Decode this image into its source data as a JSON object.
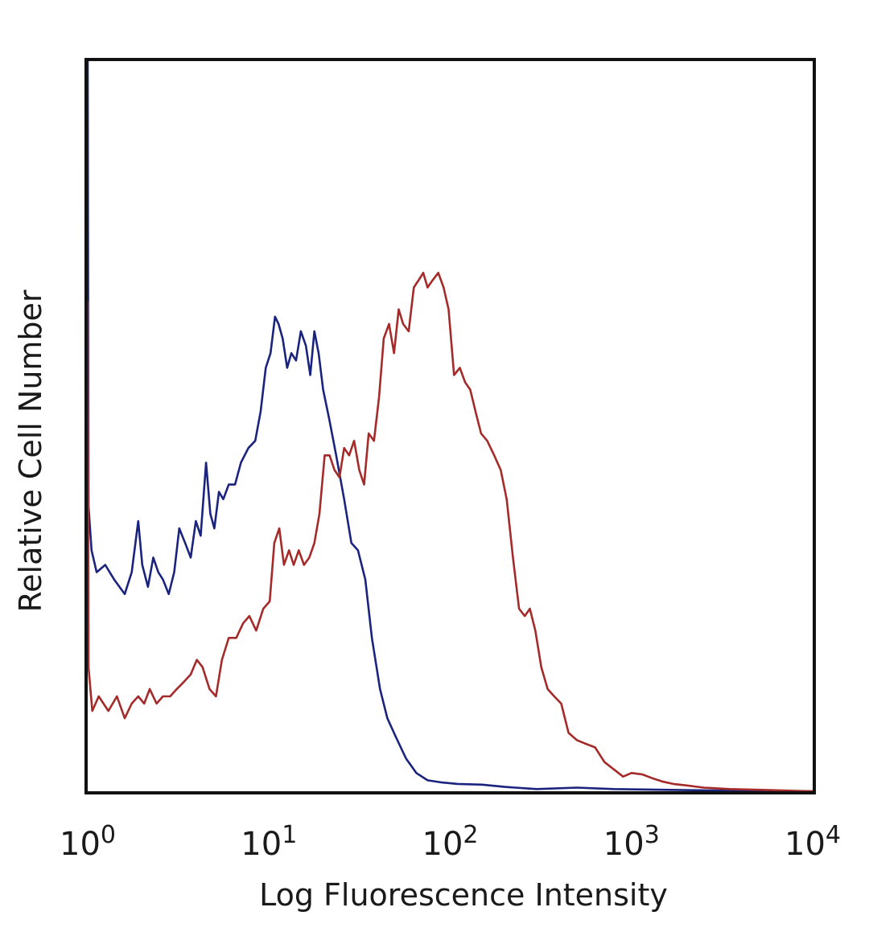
{
  "chart_data": {
    "type": "line",
    "title": "",
    "xlabel": "Log Fluorescence Intensity",
    "ylabel": "Relative Cell Number",
    "x_scale": "log",
    "xlim": [
      1,
      10000
    ],
    "ylim": [
      0,
      100
    ],
    "y_ticks_shown": false,
    "grid": false,
    "legend": "none",
    "x_ticks": [
      {
        "value": 1,
        "base": "10",
        "exp": "0"
      },
      {
        "value": 10,
        "base": "10",
        "exp": "1"
      },
      {
        "value": 100,
        "base": "10",
        "exp": "2"
      },
      {
        "value": 1000,
        "base": "10",
        "exp": "3"
      },
      {
        "value": 10000,
        "base": "10",
        "exp": "4"
      }
    ],
    "series": [
      {
        "color": "#1a237e",
        "points": [
          [
            1.0,
            100
          ],
          [
            1.01,
            39
          ],
          [
            1.05,
            33
          ],
          [
            1.12,
            30
          ],
          [
            1.25,
            31
          ],
          [
            1.4,
            29
          ],
          [
            1.6,
            27
          ],
          [
            1.75,
            30
          ],
          [
            1.9,
            37
          ],
          [
            2.0,
            31
          ],
          [
            2.15,
            28
          ],
          [
            2.3,
            32
          ],
          [
            2.45,
            30
          ],
          [
            2.6,
            29
          ],
          [
            2.8,
            27
          ],
          [
            3.0,
            30
          ],
          [
            3.2,
            36
          ],
          [
            3.45,
            34
          ],
          [
            3.7,
            32
          ],
          [
            3.95,
            37
          ],
          [
            4.2,
            35
          ],
          [
            4.5,
            45
          ],
          [
            4.75,
            38
          ],
          [
            5.0,
            36
          ],
          [
            5.3,
            41
          ],
          [
            5.6,
            40
          ],
          [
            6.0,
            42
          ],
          [
            6.5,
            42
          ],
          [
            7.0,
            45
          ],
          [
            7.7,
            47
          ],
          [
            8.4,
            48
          ],
          [
            9.0,
            52
          ],
          [
            9.6,
            58
          ],
          [
            10.2,
            60
          ],
          [
            10.8,
            65
          ],
          [
            11.3,
            64
          ],
          [
            11.9,
            62
          ],
          [
            12.6,
            58
          ],
          [
            13.3,
            60
          ],
          [
            14.1,
            59
          ],
          [
            15.0,
            63
          ],
          [
            16.0,
            61
          ],
          [
            16.9,
            57
          ],
          [
            17.8,
            63
          ],
          [
            18.8,
            60
          ],
          [
            19.9,
            55
          ],
          [
            21.5,
            51
          ],
          [
            23.5,
            46
          ],
          [
            26.0,
            40
          ],
          [
            28.5,
            34
          ],
          [
            31.0,
            33
          ],
          [
            34.0,
            29
          ],
          [
            37.0,
            21
          ],
          [
            41.0,
            14
          ],
          [
            45.0,
            10
          ],
          [
            50.0,
            7.5
          ],
          [
            57.0,
            4.5
          ],
          [
            65.0,
            2.5
          ],
          [
            75.0,
            1.5
          ],
          [
            90.0,
            1.2
          ],
          [
            110.0,
            1.0
          ],
          [
            150.0,
            0.9
          ],
          [
            200.0,
            0.6
          ],
          [
            300.0,
            0.3
          ],
          [
            500.0,
            0.5
          ],
          [
            800.0,
            0.3
          ],
          [
            1500.0,
            0.2
          ],
          [
            3000.0,
            0.1
          ],
          [
            10000.0,
            0
          ]
        ]
      },
      {
        "color": "#a52a2a",
        "points": [
          [
            1.0,
            67
          ],
          [
            1.01,
            17
          ],
          [
            1.06,
            11
          ],
          [
            1.15,
            13
          ],
          [
            1.3,
            11
          ],
          [
            1.45,
            13
          ],
          [
            1.6,
            10
          ],
          [
            1.75,
            12
          ],
          [
            1.9,
            13
          ],
          [
            2.05,
            12
          ],
          [
            2.2,
            14
          ],
          [
            2.4,
            12
          ],
          [
            2.6,
            13
          ],
          [
            2.85,
            13
          ],
          [
            3.1,
            14
          ],
          [
            3.4,
            15
          ],
          [
            3.7,
            16
          ],
          [
            4.0,
            18
          ],
          [
            4.3,
            17
          ],
          [
            4.7,
            14
          ],
          [
            5.1,
            13
          ],
          [
            5.5,
            18
          ],
          [
            6.0,
            21
          ],
          [
            6.6,
            21
          ],
          [
            7.2,
            23
          ],
          [
            7.8,
            24
          ],
          [
            8.5,
            22
          ],
          [
            9.3,
            25
          ],
          [
            10.1,
            26
          ],
          [
            10.7,
            34
          ],
          [
            11.4,
            36
          ],
          [
            12.1,
            31
          ],
          [
            12.9,
            33
          ],
          [
            13.7,
            31
          ],
          [
            14.6,
            33
          ],
          [
            15.6,
            31
          ],
          [
            16.7,
            32
          ],
          [
            17.8,
            34
          ],
          [
            19.0,
            38
          ],
          [
            20.3,
            46
          ],
          [
            21.6,
            46
          ],
          [
            23.0,
            44
          ],
          [
            24.5,
            43
          ],
          [
            26.0,
            47
          ],
          [
            27.7,
            46
          ],
          [
            29.5,
            48
          ],
          [
            31.5,
            44
          ],
          [
            33.5,
            42
          ],
          [
            35.5,
            49
          ],
          [
            38.0,
            48
          ],
          [
            40.5,
            54
          ],
          [
            43.0,
            62
          ],
          [
            46.0,
            64
          ],
          [
            49.0,
            60
          ],
          [
            52.0,
            66
          ],
          [
            55.0,
            64
          ],
          [
            59.0,
            63
          ],
          [
            63.0,
            69
          ],
          [
            67.0,
            70
          ],
          [
            71.0,
            71
          ],
          [
            75.0,
            69
          ],
          [
            80.0,
            70
          ],
          [
            86.0,
            71
          ],
          [
            92.0,
            69
          ],
          [
            98.0,
            66
          ],
          [
            105.0,
            57
          ],
          [
            113.0,
            58
          ],
          [
            121.0,
            56
          ],
          [
            129.0,
            55
          ],
          [
            138.0,
            52
          ],
          [
            148.0,
            49
          ],
          [
            160.0,
            48
          ],
          [
            175.0,
            46
          ],
          [
            190.0,
            44
          ],
          [
            205.0,
            40
          ],
          [
            222.0,
            32
          ],
          [
            240.0,
            25
          ],
          [
            258.0,
            24
          ],
          [
            275.0,
            25
          ],
          [
            295.0,
            22
          ],
          [
            318.0,
            17
          ],
          [
            345.0,
            14
          ],
          [
            375.0,
            13
          ],
          [
            410.0,
            12
          ],
          [
            450.0,
            8
          ],
          [
            500.0,
            7
          ],
          [
            560.0,
            6.5
          ],
          [
            630.0,
            6
          ],
          [
            710.0,
            4
          ],
          [
            800.0,
            3
          ],
          [
            900.0,
            2
          ],
          [
            1000.0,
            2.5
          ],
          [
            1150.0,
            2.3
          ],
          [
            1300.0,
            1.8
          ],
          [
            1500.0,
            1.3
          ],
          [
            1700.0,
            1.0
          ],
          [
            2000.0,
            0.8
          ],
          [
            2500.0,
            0.5
          ],
          [
            3500.0,
            0.3
          ],
          [
            5000.0,
            0.2
          ],
          [
            10000.0,
            0
          ]
        ]
      }
    ]
  }
}
